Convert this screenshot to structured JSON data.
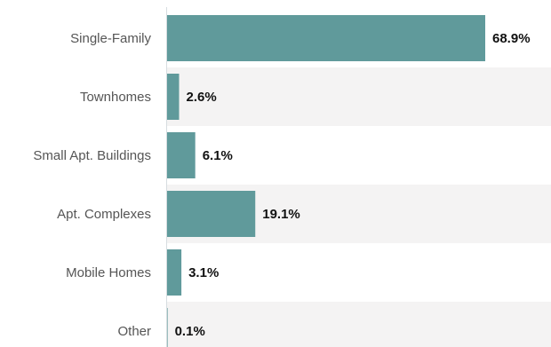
{
  "chart_data": {
    "type": "bar",
    "orientation": "horizontal",
    "title": "",
    "xlabel": "",
    "ylabel": "",
    "categories": [
      "Single-Family",
      "Townhomes",
      "Small Apt. Buildings",
      "Apt. Complexes",
      "Mobile Homes",
      "Other"
    ],
    "values": [
      68.9,
      2.6,
      6.1,
      19.1,
      3.1,
      0.1
    ],
    "value_labels": [
      "68.9%",
      "2.6%",
      "6.1%",
      "19.1%",
      "3.1%",
      "0.1%"
    ],
    "xlim": [
      0,
      80
    ],
    "grid": false,
    "legend": "none",
    "colors": {
      "bar": "#609a9b",
      "band_alt": "#f4f3f3",
      "axis": "#d7dde0"
    }
  }
}
